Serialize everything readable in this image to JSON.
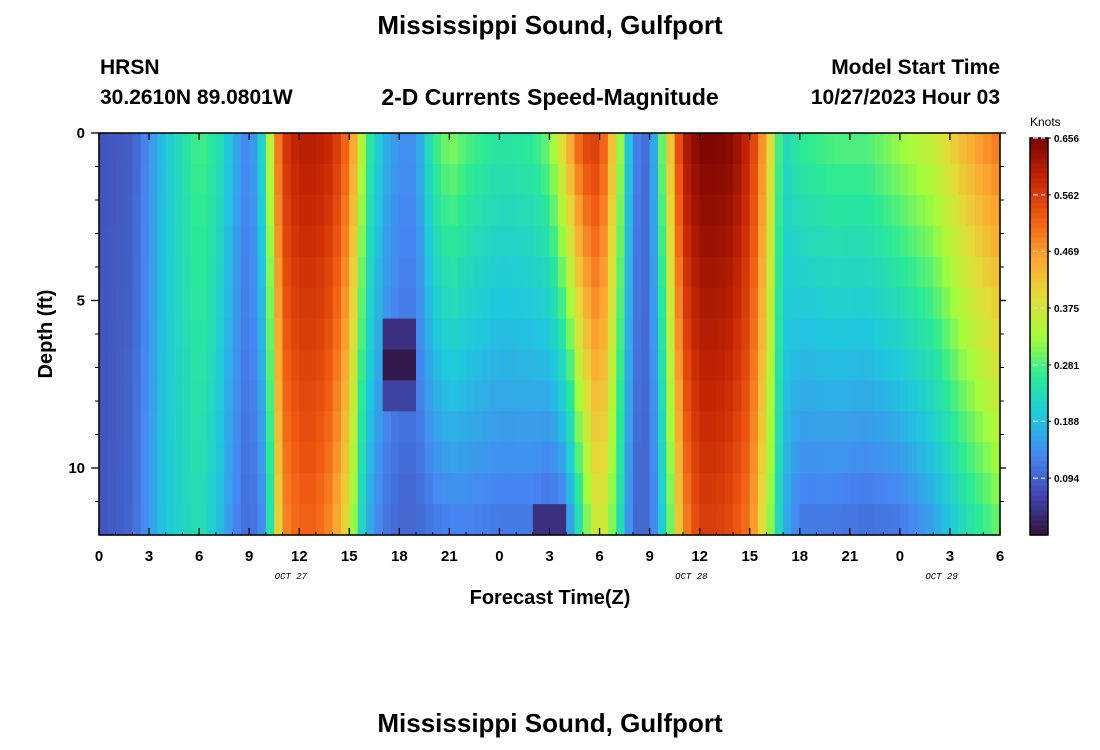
{
  "header": {
    "title": "Mississippi Sound, Gulfport",
    "station": "HRSN",
    "coords": "30.2610N  89.0801W",
    "subtitle": "2-D Currents Speed-Magnitude",
    "model_start_label": "Model Start Time",
    "model_start_value": "10/27/2023 Hour 03"
  },
  "footer": {
    "title": "Mississippi Sound, Gulfport"
  },
  "chart_data": {
    "type": "heatmap",
    "title": "2-D Currents Speed-Magnitude",
    "xlabel": "Forecast Time(Z)",
    "ylabel": "Depth (ft)",
    "x_unit": "hours",
    "x_range": [
      0,
      54
    ],
    "y_range": [
      0,
      12
    ],
    "y_reversed": true,
    "x_tick_labels": [
      "0",
      "3",
      "6",
      "9",
      "12",
      "15",
      "18",
      "21",
      "0",
      "3",
      "6",
      "9",
      "12",
      "15",
      "18",
      "21",
      "0",
      "3",
      "6"
    ],
    "y_tick_labels": [
      "0",
      "5",
      "10"
    ],
    "y_ticks": [
      0,
      5,
      10
    ],
    "date_labels": [
      {
        "label": "OCT 27",
        "hour": 11.5
      },
      {
        "label": "OCT 28",
        "hour": 35.5
      },
      {
        "label": "OCT 29",
        "hour": 50.5
      }
    ],
    "colorbar": {
      "unit": "Knots",
      "range": [
        0.0,
        0.656
      ],
      "ticks": [
        "0.656",
        "0.562",
        "0.469",
        "0.375",
        "0.281",
        "0.188",
        "0.094"
      ],
      "tick_values": [
        0.656,
        0.562,
        0.469,
        0.375,
        0.281,
        0.188,
        0.094
      ]
    },
    "colormap": [
      "#30123b",
      "#4146ac",
      "#4686f1",
      "#1fc8de",
      "#2ae997",
      "#a4fc3c",
      "#e2dc38",
      "#fea431",
      "#f05b12",
      "#c42503",
      "#7a0403"
    ],
    "depths": [
      0,
      1,
      2,
      3,
      4,
      5,
      6,
      7,
      8,
      9,
      10,
      11,
      12
    ],
    "speed_profile": {
      "hours": [
        0,
        2,
        3,
        4,
        5,
        6,
        7,
        8,
        9,
        10,
        10.5,
        11,
        12,
        13,
        14,
        15,
        15.5,
        16,
        17,
        18,
        19,
        20,
        21,
        22,
        24,
        26,
        27,
        28,
        29,
        30,
        31,
        32,
        33,
        34,
        35,
        36,
        37,
        38,
        39,
        40,
        41,
        42,
        44,
        46,
        48,
        50,
        52,
        54
      ],
      "surface": [
        0.08,
        0.09,
        0.14,
        0.2,
        0.24,
        0.28,
        0.25,
        0.18,
        0.12,
        0.25,
        0.44,
        0.56,
        0.6,
        0.6,
        0.58,
        0.5,
        0.4,
        0.28,
        0.18,
        0.14,
        0.14,
        0.26,
        0.31,
        0.28,
        0.25,
        0.26,
        0.3,
        0.42,
        0.54,
        0.56,
        0.38,
        0.13,
        0.1,
        0.36,
        0.6,
        0.65,
        0.65,
        0.64,
        0.58,
        0.44,
        0.22,
        0.26,
        0.28,
        0.28,
        0.32,
        0.36,
        0.44,
        0.5
      ],
      "bottom": [
        0.08,
        0.1,
        0.15,
        0.2,
        0.22,
        0.24,
        0.2,
        0.14,
        0.1,
        0.15,
        0.34,
        0.48,
        0.52,
        0.52,
        0.48,
        0.38,
        0.26,
        0.18,
        0.12,
        0.1,
        0.1,
        0.12,
        0.13,
        0.13,
        0.12,
        0.12,
        0.1,
        0.12,
        0.28,
        0.4,
        0.28,
        0.1,
        0.1,
        0.24,
        0.48,
        0.56,
        0.56,
        0.54,
        0.5,
        0.36,
        0.18,
        0.12,
        0.12,
        0.11,
        0.12,
        0.16,
        0.24,
        0.3
      ]
    },
    "minimum_spots": [
      {
        "hour": 18,
        "depth": 7,
        "value": 0.01
      },
      {
        "hour": 18,
        "depth": 6,
        "value": 0.04
      },
      {
        "hour": 18,
        "depth": 8,
        "value": 0.06
      },
      {
        "hour": 27,
        "depth": 12,
        "value": 0.04
      }
    ]
  }
}
